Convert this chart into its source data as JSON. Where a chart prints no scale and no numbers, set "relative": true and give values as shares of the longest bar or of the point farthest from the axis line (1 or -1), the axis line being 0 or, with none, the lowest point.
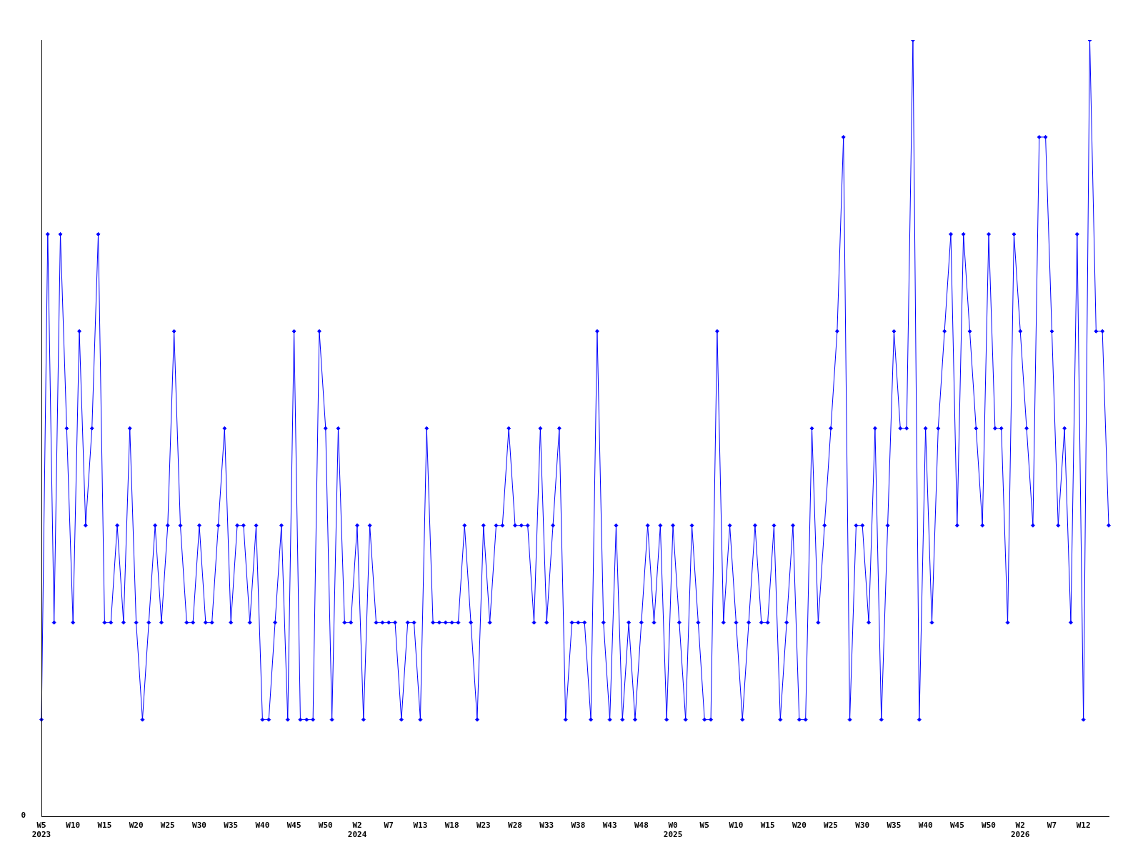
{
  "chart_data": {
    "type": "line",
    "relative": true,
    "color": "#0000ff",
    "marker": "diamond",
    "grid": false,
    "legend": false,
    "annotations": [
      "0"
    ],
    "categories": [
      "W5\n2023",
      null,
      null,
      null,
      null,
      "W10",
      null,
      null,
      null,
      null,
      "W15",
      null,
      null,
      null,
      null,
      "W20",
      null,
      null,
      null,
      null,
      "W25",
      null,
      null,
      null,
      null,
      "W30",
      null,
      null,
      null,
      null,
      "W35",
      null,
      null,
      null,
      null,
      "W40",
      null,
      null,
      null,
      null,
      "W45",
      null,
      null,
      null,
      null,
      "W50",
      null,
      null,
      null,
      null,
      "W2\n2024",
      null,
      null,
      null,
      null,
      "W7",
      null,
      null,
      null,
      null,
      "W13",
      null,
      null,
      null,
      null,
      "W18",
      null,
      null,
      null,
      null,
      "W23",
      null,
      null,
      null,
      null,
      "W28",
      null,
      null,
      null,
      null,
      "W33",
      null,
      null,
      null,
      null,
      "W38",
      null,
      null,
      null,
      null,
      "W43",
      null,
      null,
      null,
      null,
      "W48",
      null,
      null,
      null,
      null,
      "W0\n2025",
      null,
      null,
      null,
      null,
      "W5",
      null,
      null,
      null,
      null,
      "W10",
      null,
      null,
      null,
      null,
      "W15",
      null,
      null,
      null,
      null,
      "W20",
      null,
      null,
      null,
      null,
      "W25",
      null,
      null,
      null,
      null,
      "W30",
      null,
      null,
      null,
      null,
      "W35",
      null,
      null,
      null,
      null,
      "W40",
      null,
      null,
      null,
      null,
      "W45",
      null,
      null,
      null,
      null,
      "W50",
      null,
      null,
      null,
      null,
      "W2\n2026",
      null,
      null,
      null,
      null,
      "W7",
      null,
      null,
      null,
      null,
      "W12",
      null,
      null,
      null,
      null
    ],
    "values": [
      0.125,
      0.75,
      0.25,
      0.75,
      0.5,
      0.25,
      0.625,
      0.375,
      0.5,
      0.75,
      0.25,
      0.25,
      0.375,
      0.25,
      0.5,
      0.25,
      0.125,
      0.25,
      0.375,
      0.25,
      0.375,
      0.625,
      0.375,
      0.25,
      0.25,
      0.375,
      0.25,
      0.25,
      0.375,
      0.5,
      0.25,
      0.375,
      0.375,
      0.25,
      0.375,
      0.125,
      0.125,
      0.25,
      0.375,
      0.125,
      0.625,
      0.125,
      0.125,
      0.125,
      0.625,
      0.5,
      0.125,
      0.5,
      0.25,
      0.25,
      0.375,
      0.125,
      0.375,
      0.25,
      0.25,
      0.25,
      0.25,
      0.125,
      0.25,
      0.25,
      0.125,
      0.5,
      0.25,
      0.25,
      0.25,
      0.25,
      0.25,
      0.375,
      0.25,
      0.125,
      0.375,
      0.25,
      0.375,
      0.375,
      0.5,
      0.375,
      0.375,
      0.375,
      0.25,
      0.5,
      0.25,
      0.375,
      0.5,
      0.125,
      0.25,
      0.25,
      0.25,
      0.125,
      0.625,
      0.25,
      0.125,
      0.375,
      0.125,
      0.25,
      0.125,
      0.25,
      0.375,
      0.25,
      0.375,
      0.125,
      0.375,
      0.25,
      0.125,
      0.375,
      0.25,
      0.125,
      0.125,
      0.625,
      0.25,
      0.375,
      0.25,
      0.125,
      0.25,
      0.375,
      0.25,
      0.25,
      0.375,
      0.125,
      0.25,
      0.375,
      0.125,
      0.125,
      0.5,
      0.25,
      0.375,
      0.5,
      0.625,
      0.875,
      0.125,
      0.375,
      0.375,
      0.25,
      0.5,
      0.125,
      0.375,
      0.625,
      0.5,
      0.5,
      1,
      0.125,
      0.5,
      0.25,
      0.5,
      0.625,
      0.75,
      0.375,
      0.75,
      0.625,
      0.5,
      0.375,
      0.75,
      0.5,
      0.5,
      0.25,
      0.75,
      0.625,
      0.5,
      0.375,
      0.875,
      0.875,
      0.625,
      0.375,
      0.5,
      0.25,
      0.75,
      0.125,
      1,
      0.625,
      0.625,
      0.375
    ]
  }
}
